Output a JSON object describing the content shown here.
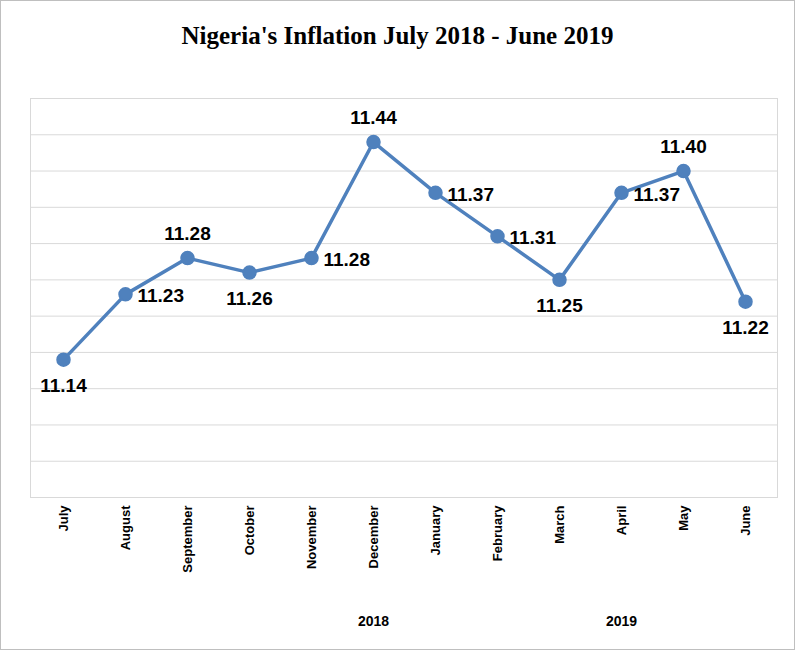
{
  "chart_data": {
    "type": "line",
    "title": "Nigeria's Inflation July 2018 - June 2019",
    "categories": [
      "July",
      "August",
      "September",
      "October",
      "November",
      "December",
      "January",
      "February",
      "March",
      "April",
      "May",
      "June"
    ],
    "values": [
      11.14,
      11.23,
      11.28,
      11.26,
      11.28,
      11.44,
      11.37,
      11.31,
      11.25,
      11.37,
      11.4,
      11.22
    ],
    "value_labels": [
      "11.14",
      "11.23",
      "11.28",
      "11.26",
      "11.28",
      "11.44",
      "11.37",
      "11.31",
      "11.25",
      "11.37",
      "11.40",
      "11.22"
    ],
    "color": "#4f81bd",
    "marker": "circle",
    "line_style": "solid",
    "ylim": [
      10.95,
      11.5
    ],
    "yticks": [
      10.95,
      11.0,
      11.05,
      11.1,
      11.15,
      11.2,
      11.25,
      11.3,
      11.35,
      11.4,
      11.45,
      11.5
    ],
    "grid": true,
    "data_labels": true,
    "tick_labels": "x",
    "annotations": [
      {
        "text": "2018",
        "at": "December"
      },
      {
        "text": "2019",
        "at": "April"
      }
    ]
  }
}
